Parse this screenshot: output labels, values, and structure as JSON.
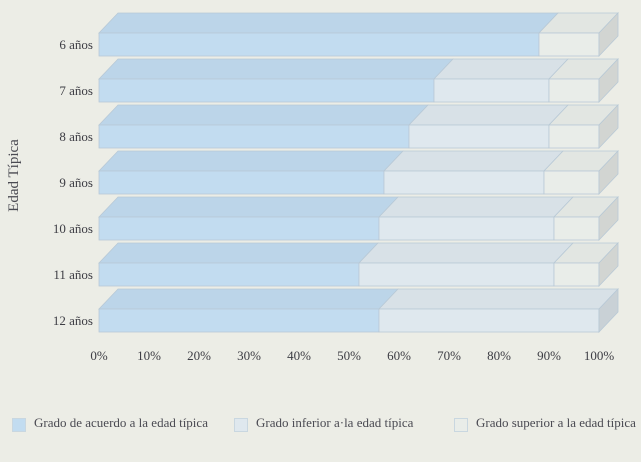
{
  "chart_data": {
    "type": "bar",
    "orientation": "horizontal",
    "stacked": true,
    "three_d": true,
    "ylabel": "Edad Típica",
    "categories": [
      "6 años",
      "7 años",
      "8 años",
      "9 años",
      "10 años",
      "11 años",
      "12 años"
    ],
    "x_ticks": [
      "0%",
      "10%",
      "20%",
      "30%",
      "40%",
      "50%",
      "60%",
      "70%",
      "80%",
      "90%",
      "100%"
    ],
    "xlim": [
      0,
      100
    ],
    "series": [
      {
        "name": "Grado de acuerdo  a la edad típica",
        "color": "#c2dcf0",
        "values": [
          88,
          67,
          62,
          57,
          56,
          52,
          56
        ]
      },
      {
        "name": "Grado inferior a·la edad típica",
        "color": "#dfe8ee",
        "values": [
          0,
          23,
          28,
          32,
          35,
          39,
          44
        ]
      },
      {
        "name": "Grado superior a la edad típica",
        "color": "#e9ede9",
        "values": [
          12,
          10,
          10,
          11,
          9,
          9,
          0
        ]
      }
    ],
    "legend_position": "bottom"
  }
}
